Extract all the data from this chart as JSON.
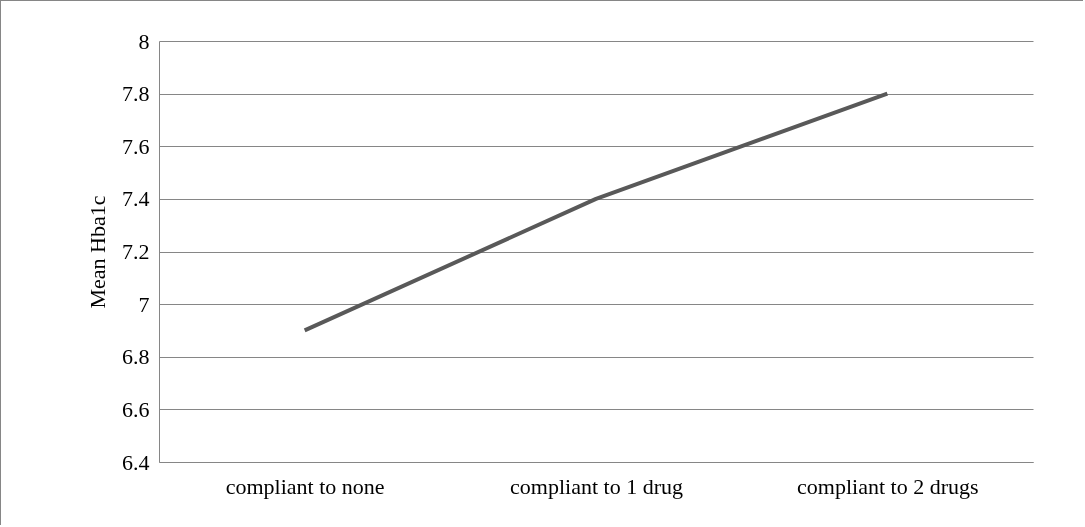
{
  "chart_data": {
    "type": "line",
    "ylabel": "Mean Hba1c",
    "categories": [
      "compliant to none",
      "compliant to 1 drug",
      "compliant to 2 drugs"
    ],
    "series": [
      {
        "color": "#595959",
        "values": [
          6.9,
          7.4,
          7.8
        ]
      }
    ],
    "ylim": [
      6.4,
      8
    ],
    "yticks": [
      6.4,
      6.6,
      6.8,
      7,
      7.2,
      7.4,
      7.6,
      7.8,
      8
    ],
    "grid": "y",
    "marker": "none",
    "line_style": "solid"
  }
}
